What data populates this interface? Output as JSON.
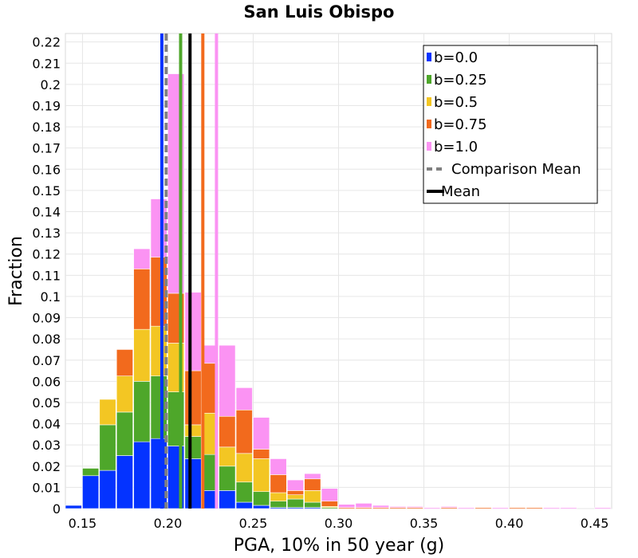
{
  "chart_data": {
    "type": "bar",
    "title": "San Luis Obispo",
    "xlabel": "PGA, 10% in 50 year (g)",
    "ylabel": "Fraction",
    "xlim": [
      0.14,
      0.46
    ],
    "ylim": [
      0,
      0.224
    ],
    "xticks": [
      "0.15",
      "0.20",
      "0.25",
      "0.30",
      "0.35",
      "0.40",
      "0.45"
    ],
    "yticks": [
      "0",
      "0.01",
      "0.02",
      "0.03",
      "0.04",
      "0.05",
      "0.06",
      "0.07",
      "0.08",
      "0.09",
      "0.1",
      "0.11",
      "0.12",
      "0.13",
      "0.14",
      "0.15",
      "0.16",
      "0.17",
      "0.18",
      "0.19",
      "0.2",
      "0.21",
      "0.22"
    ],
    "grid": true,
    "stacked": true,
    "bin_width": 0.01,
    "bin_starts": [
      0.14,
      0.15,
      0.16,
      0.17,
      0.18,
      0.19,
      0.2,
      0.21,
      0.22,
      0.23,
      0.24,
      0.25,
      0.26,
      0.27,
      0.28,
      0.29,
      0.3,
      0.31,
      0.32,
      0.33,
      0.34,
      0.35,
      0.36,
      0.37,
      0.38,
      0.39,
      0.4,
      0.41,
      0.42,
      0.43,
      0.44,
      0.45
    ],
    "series": [
      {
        "name": "b=0.0",
        "color": "#0433ff",
        "values": [
          0.0015,
          0.0155,
          0.018,
          0.025,
          0.0315,
          0.033,
          0.0295,
          0.0235,
          0.0085,
          0.0085,
          0.003,
          0.0015,
          0.0005,
          0.0005,
          0.0005,
          0,
          0,
          0,
          0,
          0,
          0,
          0,
          0,
          0,
          0,
          0,
          0,
          0,
          0,
          0,
          0,
          0
        ]
      },
      {
        "name": "b=0.25",
        "color": "#4ea72a",
        "values": [
          0,
          0.0035,
          0.0215,
          0.0205,
          0.0285,
          0.0295,
          0.0255,
          0.0105,
          0.017,
          0.0115,
          0.0095,
          0.0065,
          0.003,
          0.004,
          0.0025,
          0.0005,
          0,
          0,
          0,
          0,
          0,
          0,
          0,
          0,
          0,
          0,
          0,
          0,
          0,
          0,
          0,
          0
        ]
      },
      {
        "name": "b=0.5",
        "color": "#f3c623",
        "values": [
          0,
          0,
          0.012,
          0.017,
          0.0245,
          0.0235,
          0.023,
          0.0055,
          0.0195,
          0.009,
          0.0135,
          0.0155,
          0.004,
          0.002,
          0.0055,
          0.0005,
          0,
          0,
          0,
          0,
          0,
          0,
          0,
          0,
          0,
          0,
          0,
          0,
          0,
          0,
          0,
          0
        ]
      },
      {
        "name": "b=0.75",
        "color": "#f26a1d",
        "values": [
          0,
          0,
          0,
          0.0125,
          0.0285,
          0.0325,
          0.0235,
          0.0255,
          0.0235,
          0.0145,
          0.0205,
          0.0045,
          0.0085,
          0.002,
          0.0055,
          0.0025,
          0.0005,
          0.0005,
          0.0005,
          0.0005,
          0.0005,
          0,
          0.0005,
          0,
          0.0005,
          0,
          0.0005,
          0.0005,
          0,
          0,
          0,
          0
        ]
      },
      {
        "name": "b=1.0",
        "color": "#fb93f3",
        "values": [
          0,
          0,
          0,
          0,
          0.0095,
          0.0275,
          0.1035,
          0.037,
          0.0085,
          0.0335,
          0.0105,
          0.015,
          0.0075,
          0.005,
          0.0025,
          0.006,
          0.0015,
          0.002,
          0.001,
          0.0005,
          0.0005,
          0.0005,
          0.0005,
          0.0005,
          0,
          0.0005,
          0,
          0,
          0.0005,
          0.0005,
          0,
          0.0005
        ]
      }
    ],
    "vlines": [
      {
        "series": "b=0.0",
        "x": 0.1965,
        "color": "#0433ff",
        "style": "solid"
      },
      {
        "series": "b=0.25",
        "x": 0.2075,
        "color": "#4ea72a",
        "style": "solid"
      },
      {
        "series": "b=0.75",
        "x": 0.2205,
        "color": "#f26a1d",
        "style": "solid"
      },
      {
        "series": "b=1.0",
        "x": 0.2285,
        "color": "#fb93f3",
        "style": "solid"
      },
      {
        "series": "Comparison Mean",
        "x": 0.199,
        "color": "#808080",
        "style": "dashed"
      },
      {
        "series": "Mean",
        "x": 0.213,
        "color": "#000000",
        "style": "solid"
      }
    ],
    "legend_position": "top-right",
    "legend": [
      {
        "label": "b=0.0",
        "color": "#0433ff",
        "marker": "bar"
      },
      {
        "label": "b=0.25",
        "color": "#4ea72a",
        "marker": "bar"
      },
      {
        "label": "b=0.5",
        "color": "#f3c623",
        "marker": "bar"
      },
      {
        "label": "b=0.75",
        "color": "#f26a1d",
        "marker": "bar"
      },
      {
        "label": "b=1.0",
        "color": "#fb93f3",
        "marker": "bar"
      },
      {
        "label": "Comparison Mean",
        "color": "#808080",
        "marker": "dashed-line"
      },
      {
        "label": "Mean",
        "color": "#000000",
        "marker": "line"
      }
    ]
  }
}
